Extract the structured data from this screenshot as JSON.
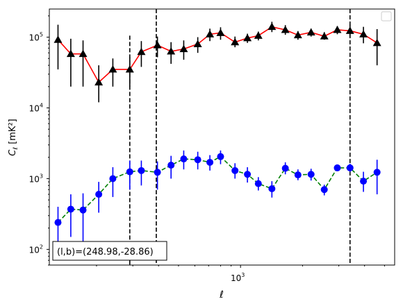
{
  "chart_data": {
    "type": "scatter",
    "title": "",
    "xlabel": "ℓ",
    "ylabel": "C_ℓ  [mK²]",
    "xscale": "log",
    "yscale": "log",
    "xlim": [
      118,
      5600
    ],
    "ylim": [
      60,
      250000
    ],
    "x_tick_labels": [
      {
        "value": 1000,
        "label": "10",
        "sup": "3"
      }
    ],
    "y_tick_labels": [
      {
        "value": 100,
        "label": "10",
        "sup": "2"
      },
      {
        "value": 1000,
        "label": "10",
        "sup": "3"
      },
      {
        "value": 10000,
        "label": "10",
        "sup": "4"
      },
      {
        "value": 100000,
        "label": "10",
        "sup": "5"
      }
    ],
    "grid": false,
    "legend": {
      "placement": "top-right",
      "entries": []
    },
    "annotation": {
      "text": "(l,b)=(248.98,-28.86)",
      "placement": "bottom-left"
    },
    "vlines": [
      {
        "x": 290,
        "ymin": 60,
        "ymax": 105000
      },
      {
        "x": 390,
        "ymin": 60,
        "ymax": 250000
      },
      {
        "x": 3400,
        "ymin": 60,
        "ymax": 250000
      }
    ],
    "series": [
      {
        "marker": "triangle",
        "marker_color": "#000000",
        "line_color": "#ff0000",
        "line_style": "solid",
        "points": [
          {
            "x": 130,
            "y": 92000,
            "lo": 35000,
            "hi": 150000
          },
          {
            "x": 150,
            "y": 58000,
            "lo": 20000,
            "hi": 95000
          },
          {
            "x": 172,
            "y": 58000,
            "lo": 20000,
            "hi": 90000
          },
          {
            "x": 205,
            "y": 23000,
            "lo": 12000,
            "hi": 40000
          },
          {
            "x": 240,
            "y": 35000,
            "lo": 20000,
            "hi": 50000
          },
          {
            "x": 290,
            "y": 35000,
            "lo": 20000,
            "hi": 52000
          },
          {
            "x": 330,
            "y": 62000,
            "lo": 38000,
            "hi": 88000
          },
          {
            "x": 395,
            "y": 77000,
            "lo": 52000,
            "hi": 102000
          },
          {
            "x": 460,
            "y": 63000,
            "lo": 42000,
            "hi": 85000
          },
          {
            "x": 530,
            "y": 68000,
            "lo": 48000,
            "hi": 90000
          },
          {
            "x": 620,
            "y": 80000,
            "lo": 60000,
            "hi": 100000
          },
          {
            "x": 710,
            "y": 110000,
            "lo": 88000,
            "hi": 132000
          },
          {
            "x": 800,
            "y": 115000,
            "lo": 92000,
            "hi": 138000
          },
          {
            "x": 940,
            "y": 85000,
            "lo": 72000,
            "hi": 102000
          },
          {
            "x": 1080,
            "y": 97000,
            "lo": 83000,
            "hi": 112000
          },
          {
            "x": 1220,
            "y": 105000,
            "lo": 90000,
            "hi": 120000
          },
          {
            "x": 1420,
            "y": 140000,
            "lo": 118000,
            "hi": 165000
          },
          {
            "x": 1650,
            "y": 127000,
            "lo": 108000,
            "hi": 148000
          },
          {
            "x": 1900,
            "y": 107000,
            "lo": 92000,
            "hi": 122000
          },
          {
            "x": 2200,
            "y": 117000,
            "lo": 102000,
            "hi": 132000
          },
          {
            "x": 2550,
            "y": 103000,
            "lo": 92000,
            "hi": 118000
          },
          {
            "x": 2950,
            "y": 127000,
            "lo": 110000,
            "hi": 143000
          },
          {
            "x": 3400,
            "y": 123000,
            "lo": 100000,
            "hi": 148000
          },
          {
            "x": 3950,
            "y": 110000,
            "lo": 82000,
            "hi": 140000
          },
          {
            "x": 4600,
            "y": 83000,
            "lo": 40000,
            "hi": 130000
          }
        ]
      },
      {
        "marker": "circle",
        "marker_color": "#0000ff",
        "line_color": "#008000",
        "line_style": "dashed",
        "points": [
          {
            "x": 130,
            "y": 240,
            "lo": 120,
            "hi": 400
          },
          {
            "x": 150,
            "y": 370,
            "lo": 150,
            "hi": 600
          },
          {
            "x": 172,
            "y": 360,
            "lo": 100,
            "hi": 620
          },
          {
            "x": 205,
            "y": 600,
            "lo": 330,
            "hi": 900
          },
          {
            "x": 240,
            "y": 1000,
            "lo": 550,
            "hi": 1450
          },
          {
            "x": 290,
            "y": 1250,
            "lo": 700,
            "hi": 1800
          },
          {
            "x": 330,
            "y": 1300,
            "lo": 800,
            "hi": 1800
          },
          {
            "x": 395,
            "y": 1230,
            "lo": 700,
            "hi": 1750
          },
          {
            "x": 460,
            "y": 1550,
            "lo": 1000,
            "hi": 2100
          },
          {
            "x": 530,
            "y": 1900,
            "lo": 1350,
            "hi": 2500
          },
          {
            "x": 620,
            "y": 1850,
            "lo": 1350,
            "hi": 2400
          },
          {
            "x": 710,
            "y": 1700,
            "lo": 1300,
            "hi": 2150
          },
          {
            "x": 800,
            "y": 2050,
            "lo": 1600,
            "hi": 2500
          },
          {
            "x": 940,
            "y": 1300,
            "lo": 1000,
            "hi": 1650
          },
          {
            "x": 1080,
            "y": 1150,
            "lo": 880,
            "hi": 1450
          },
          {
            "x": 1220,
            "y": 850,
            "lo": 680,
            "hi": 1050
          },
          {
            "x": 1420,
            "y": 720,
            "lo": 540,
            "hi": 920
          },
          {
            "x": 1650,
            "y": 1400,
            "lo": 1150,
            "hi": 1700
          },
          {
            "x": 1900,
            "y": 1130,
            "lo": 950,
            "hi": 1350
          },
          {
            "x": 2200,
            "y": 1150,
            "lo": 940,
            "hi": 1380
          },
          {
            "x": 2550,
            "y": 700,
            "lo": 580,
            "hi": 820
          },
          {
            "x": 2950,
            "y": 1420,
            "lo": 1300,
            "hi": 1550
          },
          {
            "x": 3400,
            "y": 1420,
            "lo": 1250,
            "hi": 1620
          },
          {
            "x": 3950,
            "y": 920,
            "lo": 650,
            "hi": 1250
          },
          {
            "x": 4600,
            "y": 1230,
            "lo": 600,
            "hi": 1850
          }
        ]
      }
    ]
  }
}
